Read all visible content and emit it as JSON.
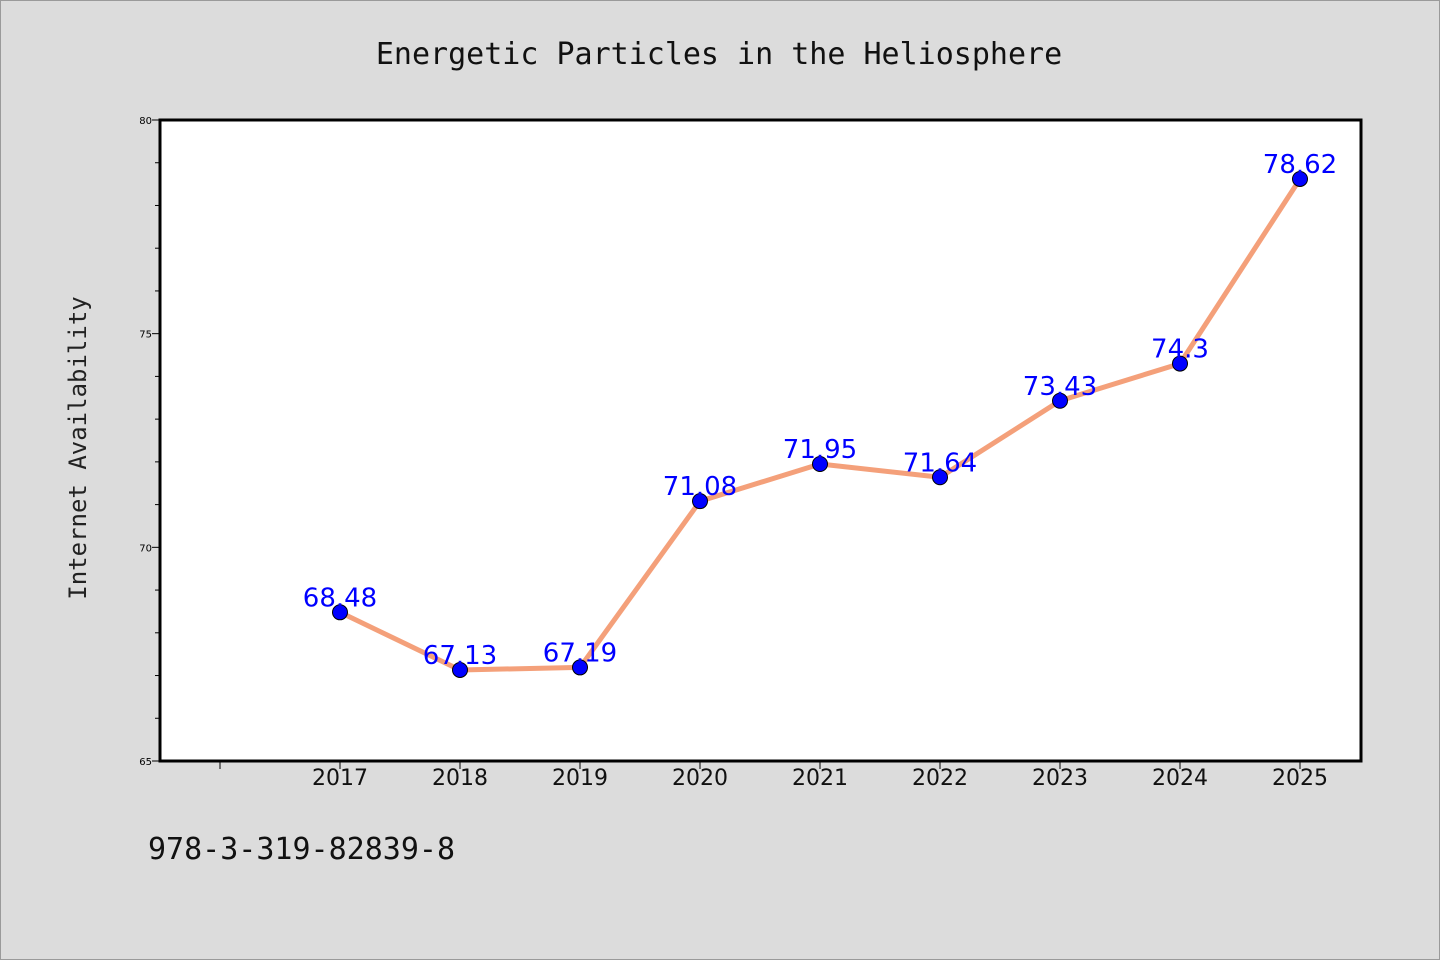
{
  "footer": {
    "note": "978-3-319-82839-8"
  },
  "colors": {
    "background": "#dcdcdc",
    "plot_background": "#ffffff",
    "line": "#f4a07a",
    "marker": "#0000ff",
    "label": "#0000ff"
  },
  "chart_data": {
    "type": "line",
    "title": "Energetic Particles in the Heliosphere",
    "xlabel": "",
    "ylabel": "Internet Availability",
    "categories": [
      "2017",
      "2018",
      "2019",
      "2020",
      "2021",
      "2022",
      "2023",
      "2024",
      "2025"
    ],
    "series": [
      {
        "values": [
          68.48,
          67.13,
          67.19,
          71.08,
          71.95,
          71.64,
          73.43,
          74.3,
          78.62
        ]
      }
    ],
    "data_labels": [
      "68.48",
      "67.13",
      "67.19",
      "71.08",
      "71.95",
      "71.64",
      "73.43",
      "74.3",
      "78.62"
    ],
    "ylim": [
      65,
      80
    ],
    "yticks": [
      65,
      70,
      75,
      80
    ],
    "ytick_labels": [
      "65",
      "70",
      "75",
      "80"
    ],
    "grid": false,
    "legend": "none"
  }
}
